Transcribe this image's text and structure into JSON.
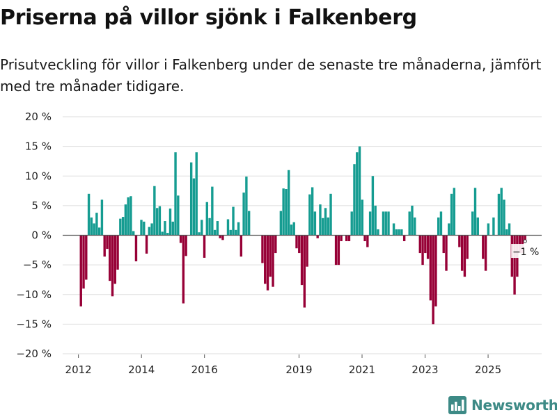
{
  "header": {
    "title": "Priserna på villor sjönk i Falkenberg",
    "subtitle": "Prisutveckling för villor i Falkenberg under de senaste tre månaderna, jämfört med tre månader tidigare."
  },
  "brand": {
    "name": "Newsworthy",
    "icon": "bar-chart-logo-icon",
    "color": "#3d8a86"
  },
  "colors": {
    "positive": "#159c91",
    "negative": "#970036",
    "grid": "#dddddd",
    "zero_line": "#555555"
  },
  "chart_data": {
    "type": "bar",
    "title": "Priserna på villor sjönk i Falkenberg",
    "ylabel": "",
    "xlabel": "",
    "ylim": [
      -20,
      20
    ],
    "yticks": [
      20,
      15,
      10,
      5,
      0,
      -5,
      -10,
      -15,
      -20
    ],
    "ytick_labels": [
      "20 %",
      "15 %",
      "10 %",
      "5 %",
      "0 %",
      "−5 %",
      "−10 %",
      "−15 %",
      "−20 %"
    ],
    "xlim": [
      2011.5,
      2026.7
    ],
    "xticks": [
      2012,
      2014,
      2016,
      2019,
      2021,
      2023,
      2025
    ],
    "xtick_labels": [
      "2012",
      "2014",
      "2016",
      "2019",
      "2021",
      "2023",
      "2025"
    ],
    "segments": [
      {
        "start": 2012.08,
        "values": [
          -12,
          -9,
          -7.5,
          7,
          3,
          2,
          3.8,
          1.3,
          6,
          -3.6,
          -2.3,
          -7.7,
          -10.3,
          -8.2,
          -5.8,
          2.8,
          3.1,
          5.2,
          6.4,
          6.6,
          0.7,
          -4.4,
          0,
          2.6,
          2.3,
          -3.1,
          1.4,
          2,
          8.3,
          4.6,
          4.9,
          0.6,
          2.4,
          0.4,
          4.5,
          2.3,
          14,
          6.7,
          -1.3,
          -11.5,
          -3.5,
          0,
          12.3,
          9.6,
          14,
          0.5,
          2.6,
          -3.8,
          5.6,
          2.9,
          8.2,
          0.9,
          2.4,
          -0.5,
          -0.8,
          0,
          2.7,
          0.9,
          4.8,
          0.9,
          2.2,
          -3.6,
          7.2,
          9.9,
          4.1
        ]
      },
      {
        "start": 2017.84,
        "values": [
          -4.7,
          -8.2,
          -9.3,
          -7,
          -8.7,
          -3,
          0,
          4.1,
          7.9,
          7.8,
          11,
          1.8,
          2.2,
          -2.2,
          -3,
          -8.4,
          -12.2,
          -5.3,
          6.9,
          8.1,
          4,
          -0.5,
          5.2,
          2.9,
          4.6,
          3,
          7,
          0,
          -5,
          -5,
          -1,
          0,
          -1,
          -1,
          4,
          12,
          14,
          15,
          6,
          -1,
          -2,
          4,
          10,
          5,
          1,
          0,
          4,
          4,
          4,
          0,
          2,
          1,
          1,
          1,
          -1,
          0,
          4,
          5,
          3,
          0,
          -3,
          -5,
          -3,
          -4,
          -11,
          -15,
          -12,
          3,
          4,
          -3,
          -6,
          2,
          7,
          8,
          0,
          -2,
          -6,
          -7,
          -4,
          0,
          4,
          8,
          3,
          0,
          -4,
          -6,
          2,
          0,
          3,
          0,
          7,
          8,
          6,
          1,
          2,
          -7,
          -10,
          -7,
          -3,
          -3,
          -1
        ]
      }
    ],
    "bar_width_years": 0.075,
    "annotation": {
      "label": "−1 %",
      "value": -1
    }
  }
}
